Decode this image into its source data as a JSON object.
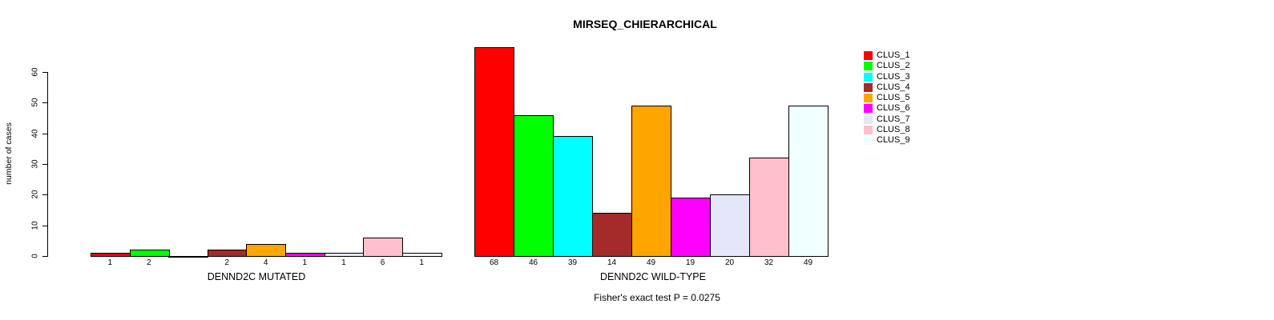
{
  "chart_data": {
    "type": "bar",
    "title": "MIRSEQ_CHIERARCHICAL",
    "ylabel": "number of cases",
    "xlabel": "",
    "ylim": [
      0,
      60
    ],
    "yticks": [
      "0",
      "10",
      "20",
      "30",
      "40",
      "50",
      "60"
    ],
    "grid": false,
    "legend_position": "right",
    "annotation": "Fisher's exact test P = 0.0275",
    "palette": [
      "#FF0000",
      "#00FF00",
      "#00FFFF",
      "#A52A2A",
      "#FFA500",
      "#FF00FF",
      "#E6E6FA",
      "#FFC0CB",
      "#F0FFFF"
    ],
    "legend": [
      {
        "name": "CLUS_1",
        "color": "#FF0000"
      },
      {
        "name": "CLUS_2",
        "color": "#00FF00"
      },
      {
        "name": "CLUS_3",
        "color": "#00FFFF"
      },
      {
        "name": "CLUS_4",
        "color": "#A52A2A"
      },
      {
        "name": "CLUS_5",
        "color": "#FFA500"
      },
      {
        "name": "CLUS_6",
        "color": "#FF00FF"
      },
      {
        "name": "CLUS_7",
        "color": "#E6E6FA"
      },
      {
        "name": "CLUS_8",
        "color": "#FFC0CB"
      },
      {
        "name": "CLUS_9",
        "color": "#F0FFFF"
      }
    ],
    "groups": [
      {
        "xlabel": "DENND2C MUTATED",
        "series": [
          "CLUS_1",
          "CLUS_2",
          "CLUS_3",
          "CLUS_4",
          "CLUS_5",
          "CLUS_6",
          "CLUS_7",
          "CLUS_8",
          "CLUS_9"
        ],
        "values": [
          1,
          2,
          0,
          2,
          4,
          1,
          1,
          6,
          1
        ],
        "bar_labels": [
          "1",
          "2",
          "",
          "2",
          "4",
          "1",
          "1",
          "6",
          "1"
        ]
      },
      {
        "xlabel": "DENND2C WILD-TYPE",
        "series": [
          "CLUS_1",
          "CLUS_2",
          "CLUS_3",
          "CLUS_4",
          "CLUS_5",
          "CLUS_6",
          "CLUS_7",
          "CLUS_8",
          "CLUS_9"
        ],
        "values": [
          68,
          46,
          39,
          14,
          49,
          19,
          20,
          32,
          49
        ],
        "bar_labels": [
          "68",
          "46",
          "39",
          "14",
          "49",
          "19",
          "20",
          "32",
          "49"
        ]
      }
    ]
  }
}
